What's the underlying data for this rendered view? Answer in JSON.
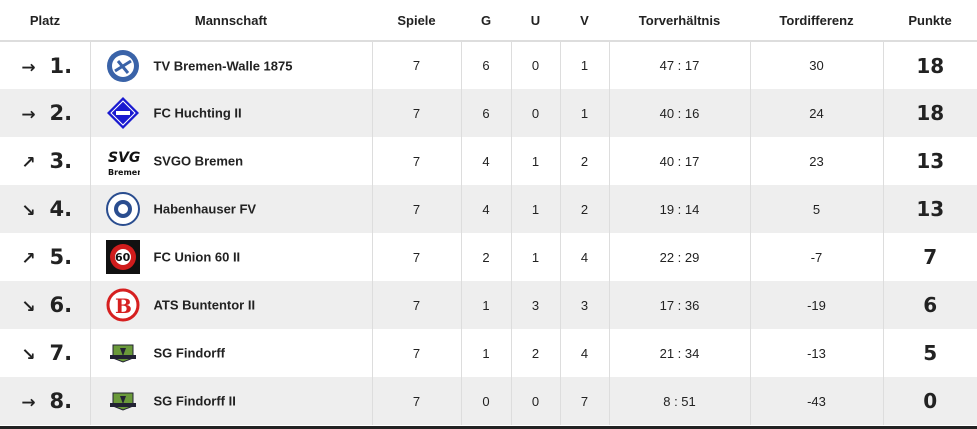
{
  "headers": {
    "platz": "Platz",
    "mannschaft": "Mannschaft",
    "spiele": "Spiele",
    "g": "G",
    "u": "U",
    "v": "V",
    "tore": "Torverhältnis",
    "diff": "Tordifferenz",
    "punkte": "Punkte"
  },
  "rows": [
    {
      "rank": "1.",
      "trend": "→",
      "trend_icon": "arrow-right-icon",
      "logo": "tv-bremen-walle-logo",
      "team": "TV Bremen-Walle 1875",
      "spiele": "7",
      "g": "6",
      "u": "0",
      "v": "1",
      "tore": "47 : 17",
      "diff": "30",
      "punkte": "18"
    },
    {
      "rank": "2.",
      "trend": "→",
      "trend_icon": "arrow-right-icon",
      "logo": "fc-huchting-logo",
      "team": "FC Huchting II",
      "spiele": "7",
      "g": "6",
      "u": "0",
      "v": "1",
      "tore": "40 : 16",
      "diff": "24",
      "punkte": "18"
    },
    {
      "rank": "3.",
      "trend": "↗",
      "trend_icon": "arrow-up-right-icon",
      "logo": "svgo-bremen-logo",
      "team": "SVGO Bremen",
      "spiele": "7",
      "g": "4",
      "u": "1",
      "v": "2",
      "tore": "40 : 17",
      "diff": "23",
      "punkte": "13"
    },
    {
      "rank": "4.",
      "trend": "↘",
      "trend_icon": "arrow-down-right-icon",
      "logo": "habenhauser-fv-logo",
      "team": "Habenhauser FV",
      "spiele": "7",
      "g": "4",
      "u": "1",
      "v": "2",
      "tore": "19 : 14",
      "diff": "5",
      "punkte": "13"
    },
    {
      "rank": "5.",
      "trend": "↗",
      "trend_icon": "arrow-up-right-icon",
      "logo": "fc-union-60-logo",
      "team": "FC Union 60 II",
      "spiele": "7",
      "g": "2",
      "u": "1",
      "v": "4",
      "tore": "22 : 29",
      "diff": "-7",
      "punkte": "7"
    },
    {
      "rank": "6.",
      "trend": "↘",
      "trend_icon": "arrow-down-right-icon",
      "logo": "ats-buntentor-logo",
      "team": "ATS Buntentor II",
      "spiele": "7",
      "g": "1",
      "u": "3",
      "v": "3",
      "tore": "17 : 36",
      "diff": "-19",
      "punkte": "6"
    },
    {
      "rank": "7.",
      "trend": "↘",
      "trend_icon": "arrow-down-right-icon",
      "logo": "sg-findorff-logo",
      "team": "SG Findorff",
      "spiele": "7",
      "g": "1",
      "u": "2",
      "v": "4",
      "tore": "21 : 34",
      "diff": "-13",
      "punkte": "5"
    },
    {
      "rank": "8.",
      "trend": "→",
      "trend_icon": "arrow-right-icon",
      "logo": "sg-findorff-logo",
      "team": "SG Findorff II",
      "spiele": "7",
      "g": "0",
      "u": "0",
      "v": "7",
      "tore": "8 : 51",
      "diff": "-43",
      "punkte": "0"
    }
  ]
}
